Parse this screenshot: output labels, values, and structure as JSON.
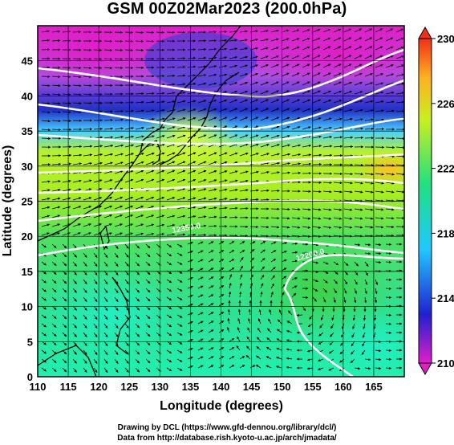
{
  "title": "GSM 00Z02Mar2023 (200.0hPa)",
  "credits": {
    "line1": "Drawing by DCL (https://www.gfd-dennou.org/library/dcl/)",
    "line2": "Data from http://database.rish.kyoto-u.ac.jp/arch/jmadata/"
  },
  "map": {
    "x_label": "Longitude (degrees)",
    "y_label": "Latitude  (degrees)",
    "x_range": [
      110,
      170
    ],
    "y_range": [
      0,
      50
    ],
    "x_ticks": [
      110,
      115,
      120,
      125,
      130,
      135,
      140,
      145,
      150,
      155,
      160,
      165
    ],
    "y_ticks": [
      0,
      5,
      10,
      15,
      20,
      25,
      30,
      35,
      40,
      45
    ],
    "grid": true,
    "vector_field": "wind arrows",
    "contour_labels": [
      "12200.0",
      "12350.0"
    ]
  },
  "colorbar": {
    "range": [
      210,
      230
    ],
    "tick_labels": [
      "210",
      "214",
      "218",
      "222",
      "226",
      "230"
    ],
    "colors": [
      "#e01ec8",
      "#2020d0",
      "#20c8ff",
      "#20e080",
      "#c8f020",
      "#ffb020",
      "#f03018"
    ]
  }
}
